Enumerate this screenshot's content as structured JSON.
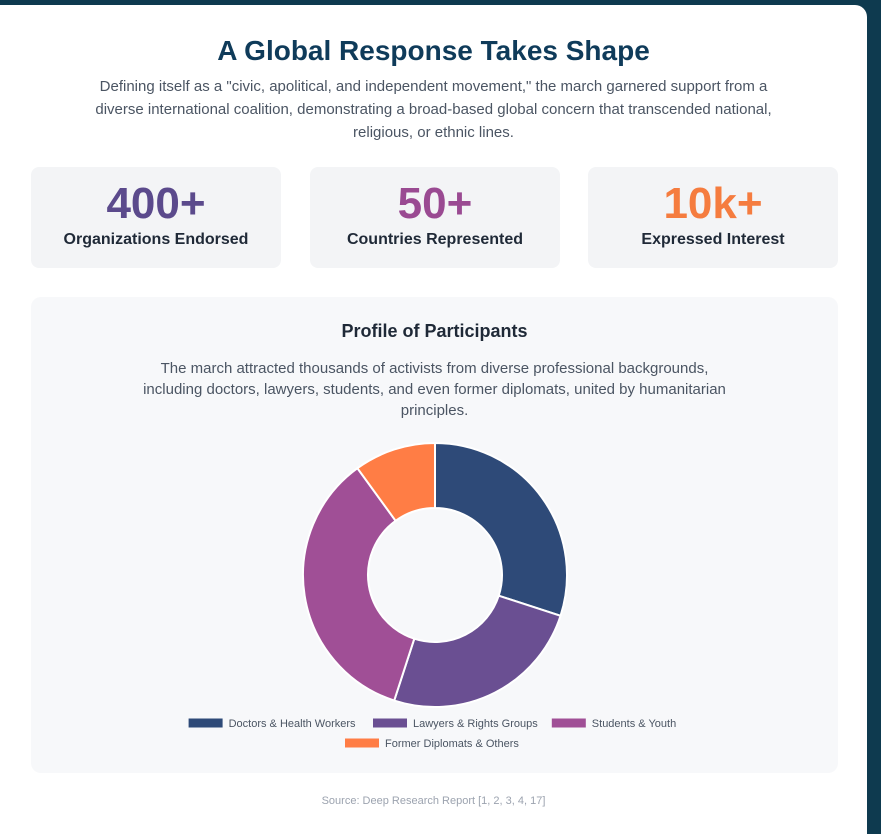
{
  "header": {
    "title": "A Global Response Takes Shape",
    "subtitle": "Defining itself as a \"civic, apolitical, and independent movement,\" the march garnered support from a diverse international coalition, demonstrating a broad-based global concern that transcended national, religious, or ethnic lines."
  },
  "stats": [
    {
      "value": "400+",
      "label": "Organizations Endorsed",
      "color": "#5b4a8c"
    },
    {
      "value": "50+",
      "label": "Countries Represented",
      "color": "#9a4a92"
    },
    {
      "value": "10k+",
      "label": "Expressed Interest",
      "color": "#f57c3f"
    }
  ],
  "profile": {
    "title": "Profile of Participants",
    "description": "The march attracted thousands of activists from diverse professional backgrounds, including doctors, lawyers, students, and even former diplomats, united by humanitarian principles."
  },
  "chart_data": {
    "type": "pie",
    "variant": "doughnut",
    "categories": [
      "Doctors & Health Workers",
      "Lawyers & Rights Groups",
      "Students & Youth",
      "Former Diplomats & Others"
    ],
    "values": [
      30,
      25,
      35,
      10
    ],
    "colors": [
      "#2e4a78",
      "#6a4f92",
      "#a04f96",
      "#ff7d45"
    ],
    "legend_position": "bottom"
  },
  "footer": {
    "source": "Source: Deep Research Report [1, 2, 3, 4, 17]"
  }
}
